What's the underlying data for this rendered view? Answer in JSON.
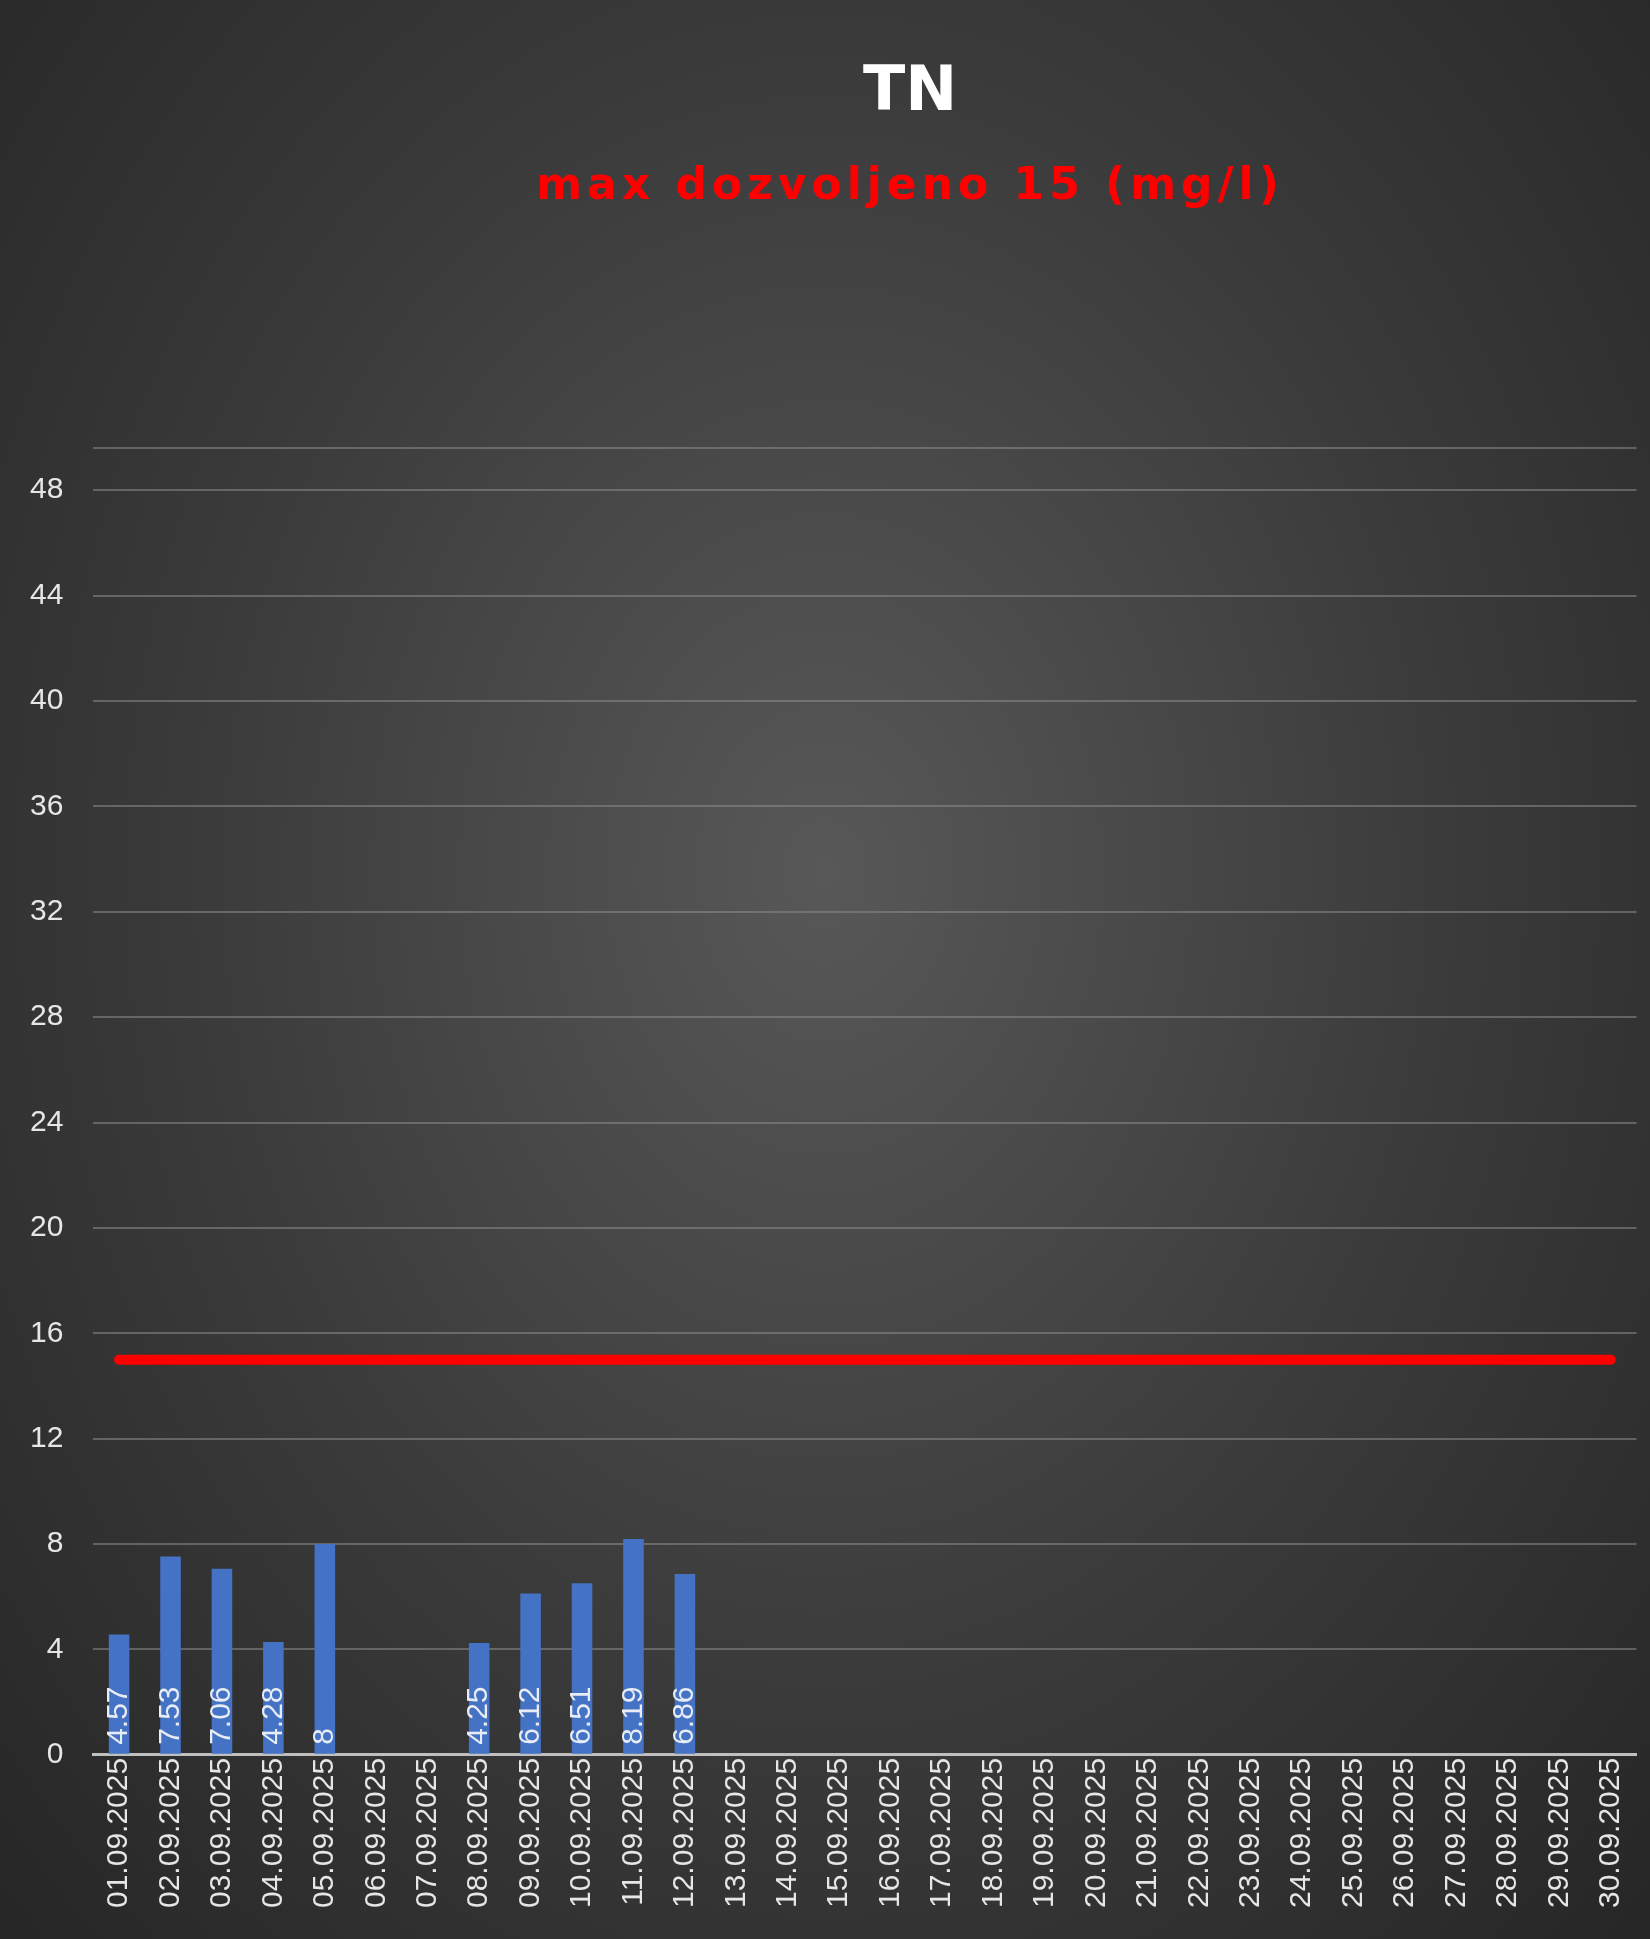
{
  "chart_data": {
    "type": "bar",
    "title": "TN",
    "subtitle": "max dozvoljeno 15 (mg/l)",
    "categories": [
      "01.09.2025",
      "02.09.2025",
      "03.09.2025",
      "04.09.2025",
      "05.09.2025",
      "06.09.2025",
      "07.09.2025",
      "08.09.2025",
      "09.09.2025",
      "10.09.2025",
      "11.09.2025",
      "12.09.2025",
      "13.09.2025",
      "14.09.2025",
      "15.09.2025",
      "16.09.2025",
      "17.09.2025",
      "18.09.2025",
      "19.09.2025",
      "20.09.2025",
      "21.09.2025",
      "22.09.2025",
      "23.09.2025",
      "24.09.2025",
      "25.09.2025",
      "26.09.2025",
      "27.09.2025",
      "28.09.2025",
      "29.09.2025",
      "30.09.2025"
    ],
    "series": [
      {
        "color": "#4472c4",
        "values": [
          4.57,
          7.53,
          7.06,
          4.28,
          8,
          null,
          null,
          4.25,
          6.12,
          6.51,
          8.19,
          6.86,
          null,
          null,
          null,
          null,
          null,
          null,
          null,
          null,
          null,
          null,
          null,
          null,
          null,
          null,
          null,
          null,
          null,
          null
        ],
        "value_labels": [
          "4.57",
          "7.53",
          "7.06",
          "4.28",
          "8",
          null,
          null,
          "4.25",
          "6.12",
          "6.51",
          "8.19",
          "6.86",
          null,
          null,
          null,
          null,
          null,
          null,
          null,
          null,
          null,
          null,
          null,
          null,
          null,
          null,
          null,
          null,
          null,
          null
        ]
      },
      {
        "type": "line",
        "color": "#ff0000",
        "values": [
          15,
          15,
          15,
          15,
          15,
          15,
          15,
          15,
          15,
          15,
          15,
          15,
          15,
          15,
          15,
          15,
          15,
          15,
          15,
          15,
          15,
          15,
          15,
          15,
          15,
          15,
          15,
          15,
          15,
          15
        ]
      }
    ],
    "ylim": [
      0,
      49.6
    ],
    "yticks": [
      0,
      4,
      8,
      12,
      16,
      20,
      24,
      28,
      32,
      36,
      40,
      44,
      48,
      {
        "value": 49.6,
        "label": null
      }
    ],
    "grid": "y",
    "legend": false,
    "marker": "none"
  }
}
